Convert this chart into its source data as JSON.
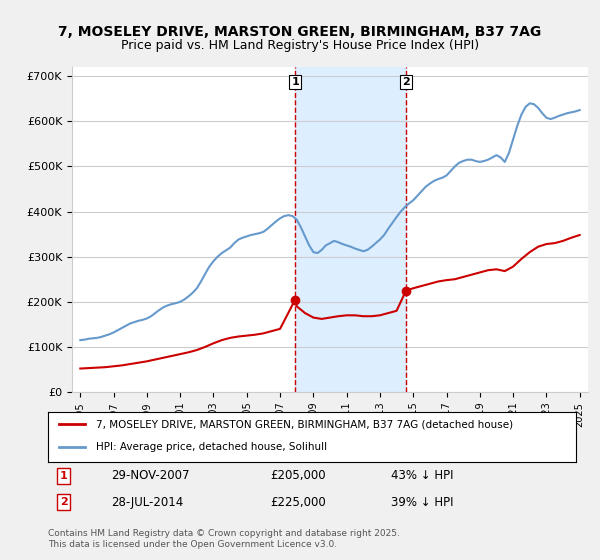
{
  "title_line1": "7, MOSELEY DRIVE, MARSTON GREEN, BIRMINGHAM, B37 7AG",
  "title_line2": "Price paid vs. HM Land Registry's House Price Index (HPI)",
  "ylabel": "",
  "xlabel": "",
  "ylim": [
    0,
    720000
  ],
  "yticks": [
    0,
    100000,
    200000,
    300000,
    400000,
    500000,
    600000,
    700000
  ],
  "ytick_labels": [
    "£0",
    "£100K",
    "£200K",
    "£300K",
    "£400K",
    "£500K",
    "£600K",
    "£700K"
  ],
  "annotation1": {
    "label": "1",
    "date": "29-NOV-2007",
    "price": "£205,000",
    "pct": "43% ↓ HPI",
    "x_year": 2007.91
  },
  "annotation2": {
    "label": "2",
    "date": "28-JUL-2014",
    "price": "£225,000",
    "pct": "39% ↓ HPI",
    "x_year": 2014.57
  },
  "red_color": "#cc0000",
  "blue_color": "#6699cc",
  "shade_color": "#ddeeff",
  "vline_color": "#cc0000",
  "grid_color": "#cccccc",
  "background_color": "#f0f0f0",
  "plot_bg_color": "#ffffff",
  "legend_label_red": "7, MOSELEY DRIVE, MARSTON GREEN, BIRMINGHAM, B37 7AG (detached house)",
  "legend_label_blue": "HPI: Average price, detached house, Solihull",
  "footer": "Contains HM Land Registry data © Crown copyright and database right 2025.\nThis data is licensed under the Open Government Licence v3.0.",
  "hpi_x": [
    1995,
    1995.25,
    1995.5,
    1995.75,
    1996,
    1996.25,
    1996.5,
    1996.75,
    1997,
    1997.25,
    1997.5,
    1997.75,
    1998,
    1998.25,
    1998.5,
    1998.75,
    1999,
    1999.25,
    1999.5,
    1999.75,
    2000,
    2000.25,
    2000.5,
    2000.75,
    2001,
    2001.25,
    2001.5,
    2001.75,
    2002,
    2002.25,
    2002.5,
    2002.75,
    2003,
    2003.25,
    2003.5,
    2003.75,
    2004,
    2004.25,
    2004.5,
    2004.75,
    2005,
    2005.25,
    2005.5,
    2005.75,
    2006,
    2006.25,
    2006.5,
    2006.75,
    2007,
    2007.25,
    2007.5,
    2007.75,
    2008,
    2008.25,
    2008.5,
    2008.75,
    2009,
    2009.25,
    2009.5,
    2009.75,
    2010,
    2010.25,
    2010.5,
    2010.75,
    2011,
    2011.25,
    2011.5,
    2011.75,
    2012,
    2012.25,
    2012.5,
    2012.75,
    2013,
    2013.25,
    2013.5,
    2013.75,
    2014,
    2014.25,
    2014.5,
    2014.75,
    2015,
    2015.25,
    2015.5,
    2015.75,
    2016,
    2016.25,
    2016.5,
    2016.75,
    2017,
    2017.25,
    2017.5,
    2017.75,
    2018,
    2018.25,
    2018.5,
    2018.75,
    2019,
    2019.25,
    2019.5,
    2019.75,
    2020,
    2020.25,
    2020.5,
    2020.75,
    2021,
    2021.25,
    2021.5,
    2021.75,
    2022,
    2022.25,
    2022.5,
    2022.75,
    2023,
    2023.25,
    2023.5,
    2023.75,
    2024,
    2024.25,
    2024.5,
    2024.75,
    2025
  ],
  "hpi_y": [
    115000,
    116000,
    118000,
    119000,
    120000,
    122000,
    125000,
    128000,
    132000,
    137000,
    142000,
    147000,
    152000,
    155000,
    158000,
    160000,
    163000,
    168000,
    175000,
    182000,
    188000,
    192000,
    195000,
    197000,
    200000,
    205000,
    212000,
    220000,
    230000,
    245000,
    262000,
    278000,
    290000,
    300000,
    308000,
    314000,
    320000,
    330000,
    338000,
    342000,
    345000,
    348000,
    350000,
    352000,
    355000,
    362000,
    370000,
    378000,
    385000,
    390000,
    392000,
    390000,
    382000,
    365000,
    345000,
    325000,
    310000,
    308000,
    315000,
    325000,
    330000,
    335000,
    332000,
    328000,
    325000,
    322000,
    318000,
    315000,
    312000,
    315000,
    322000,
    330000,
    338000,
    348000,
    362000,
    375000,
    388000,
    400000,
    410000,
    418000,
    425000,
    435000,
    445000,
    455000,
    462000,
    468000,
    472000,
    475000,
    480000,
    490000,
    500000,
    508000,
    512000,
    515000,
    515000,
    512000,
    510000,
    512000,
    515000,
    520000,
    525000,
    520000,
    510000,
    530000,
    560000,
    590000,
    615000,
    632000,
    640000,
    638000,
    630000,
    618000,
    608000,
    605000,
    608000,
    612000,
    615000,
    618000,
    620000,
    622000,
    625000
  ],
  "red_x": [
    1995,
    1995.5,
    1996,
    1996.5,
    1997,
    1997.5,
    1998,
    1998.5,
    1999,
    1999.5,
    2000,
    2000.5,
    2001,
    2001.5,
    2002,
    2002.5,
    2003,
    2003.5,
    2004,
    2004.5,
    2005,
    2005.5,
    2006,
    2006.5,
    2007,
    2007.91,
    2008,
    2008.5,
    2009,
    2009.5,
    2010,
    2010.5,
    2011,
    2011.5,
    2012,
    2012.5,
    2013,
    2013.5,
    2014,
    2014.57,
    2015,
    2015.5,
    2016,
    2016.5,
    2017,
    2017.5,
    2018,
    2018.5,
    2019,
    2019.5,
    2020,
    2020.5,
    2021,
    2021.5,
    2022,
    2022.5,
    2023,
    2023.5,
    2024,
    2024.5,
    2025
  ],
  "red_y": [
    52000,
    53000,
    54000,
    55000,
    57000,
    59000,
    62000,
    65000,
    68000,
    72000,
    76000,
    80000,
    84000,
    88000,
    93000,
    100000,
    108000,
    115000,
    120000,
    123000,
    125000,
    127000,
    130000,
    135000,
    140000,
    205000,
    190000,
    175000,
    165000,
    162000,
    165000,
    168000,
    170000,
    170000,
    168000,
    168000,
    170000,
    175000,
    180000,
    225000,
    230000,
    235000,
    240000,
    245000,
    248000,
    250000,
    255000,
    260000,
    265000,
    270000,
    272000,
    268000,
    278000,
    295000,
    310000,
    322000,
    328000,
    330000,
    335000,
    342000,
    348000
  ],
  "xlim_min": 1994.5,
  "xlim_max": 2025.5,
  "xtick_years": [
    1995,
    1997,
    1999,
    2001,
    2003,
    2005,
    2007,
    2009,
    2011,
    2013,
    2015,
    2017,
    2019,
    2021,
    2023,
    2025
  ]
}
